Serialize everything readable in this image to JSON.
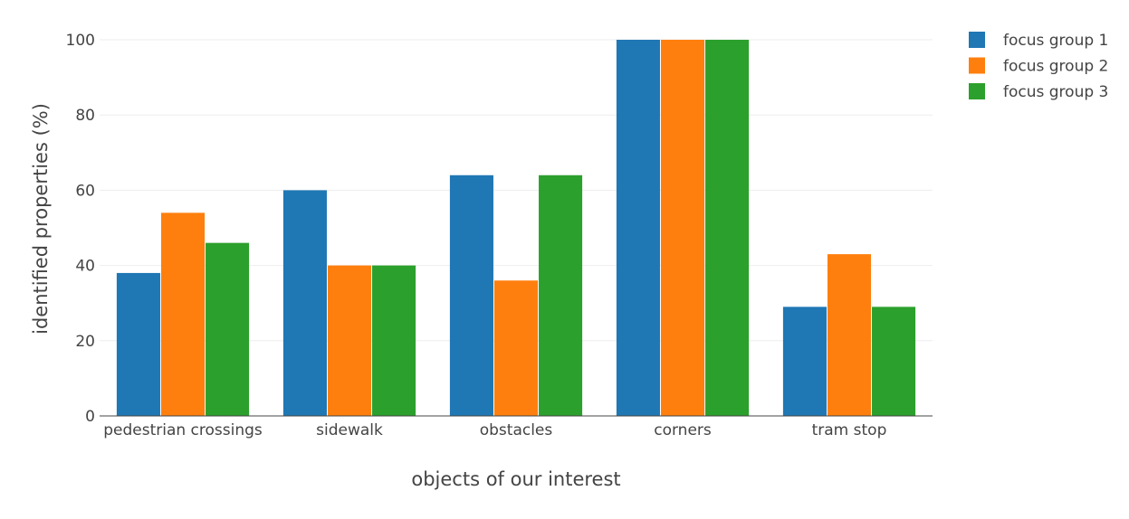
{
  "chart_data": {
    "type": "bar",
    "categories": [
      "pedestrian crossings",
      "sidewalk",
      "obstacles",
      "corners",
      "tram stop"
    ],
    "series": [
      {
        "name": "focus group 1",
        "color": "#1f77b4",
        "values": [
          38,
          60,
          64,
          100,
          29
        ]
      },
      {
        "name": "focus group 2",
        "color": "#ff7f0e",
        "values": [
          54,
          40,
          36,
          100,
          43
        ]
      },
      {
        "name": "focus group 3",
        "color": "#2ca02c",
        "values": [
          46,
          40,
          64,
          100,
          29
        ]
      }
    ],
    "title": "",
    "xlabel": "objects of our interest",
    "ylabel": "identified properties (%)",
    "ylim": [
      0,
      100
    ],
    "yticks": [
      0,
      20,
      40,
      60,
      80,
      100
    ],
    "grid": true,
    "legend_position": "top-right"
  }
}
